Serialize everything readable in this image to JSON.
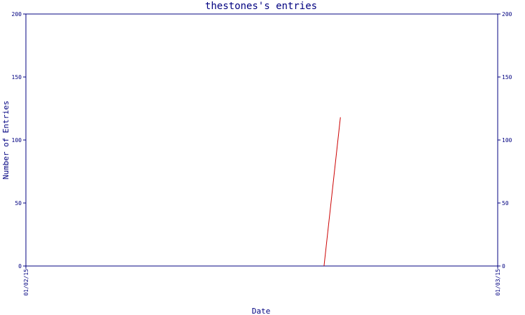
{
  "chart_data": {
    "type": "line",
    "title": "thestones's entries",
    "xlabel": "Date",
    "ylabel": "Number of Entries",
    "ylim": [
      0,
      200
    ],
    "yticks": [
      0,
      50,
      100,
      150,
      200
    ],
    "xticks": [
      "01/02/15",
      "01/03/15"
    ],
    "xlim": [
      "2015-01-02",
      "2015-01-03"
    ],
    "grid": false,
    "colors": {
      "axis": "#000080",
      "series": "#cc0000"
    },
    "series": [
      {
        "color": "#cc0000",
        "points": [
          {
            "x": "2015-01-02T15:10",
            "y": 0
          },
          {
            "x": "2015-01-02T16:00",
            "y": 118
          }
        ]
      }
    ]
  }
}
